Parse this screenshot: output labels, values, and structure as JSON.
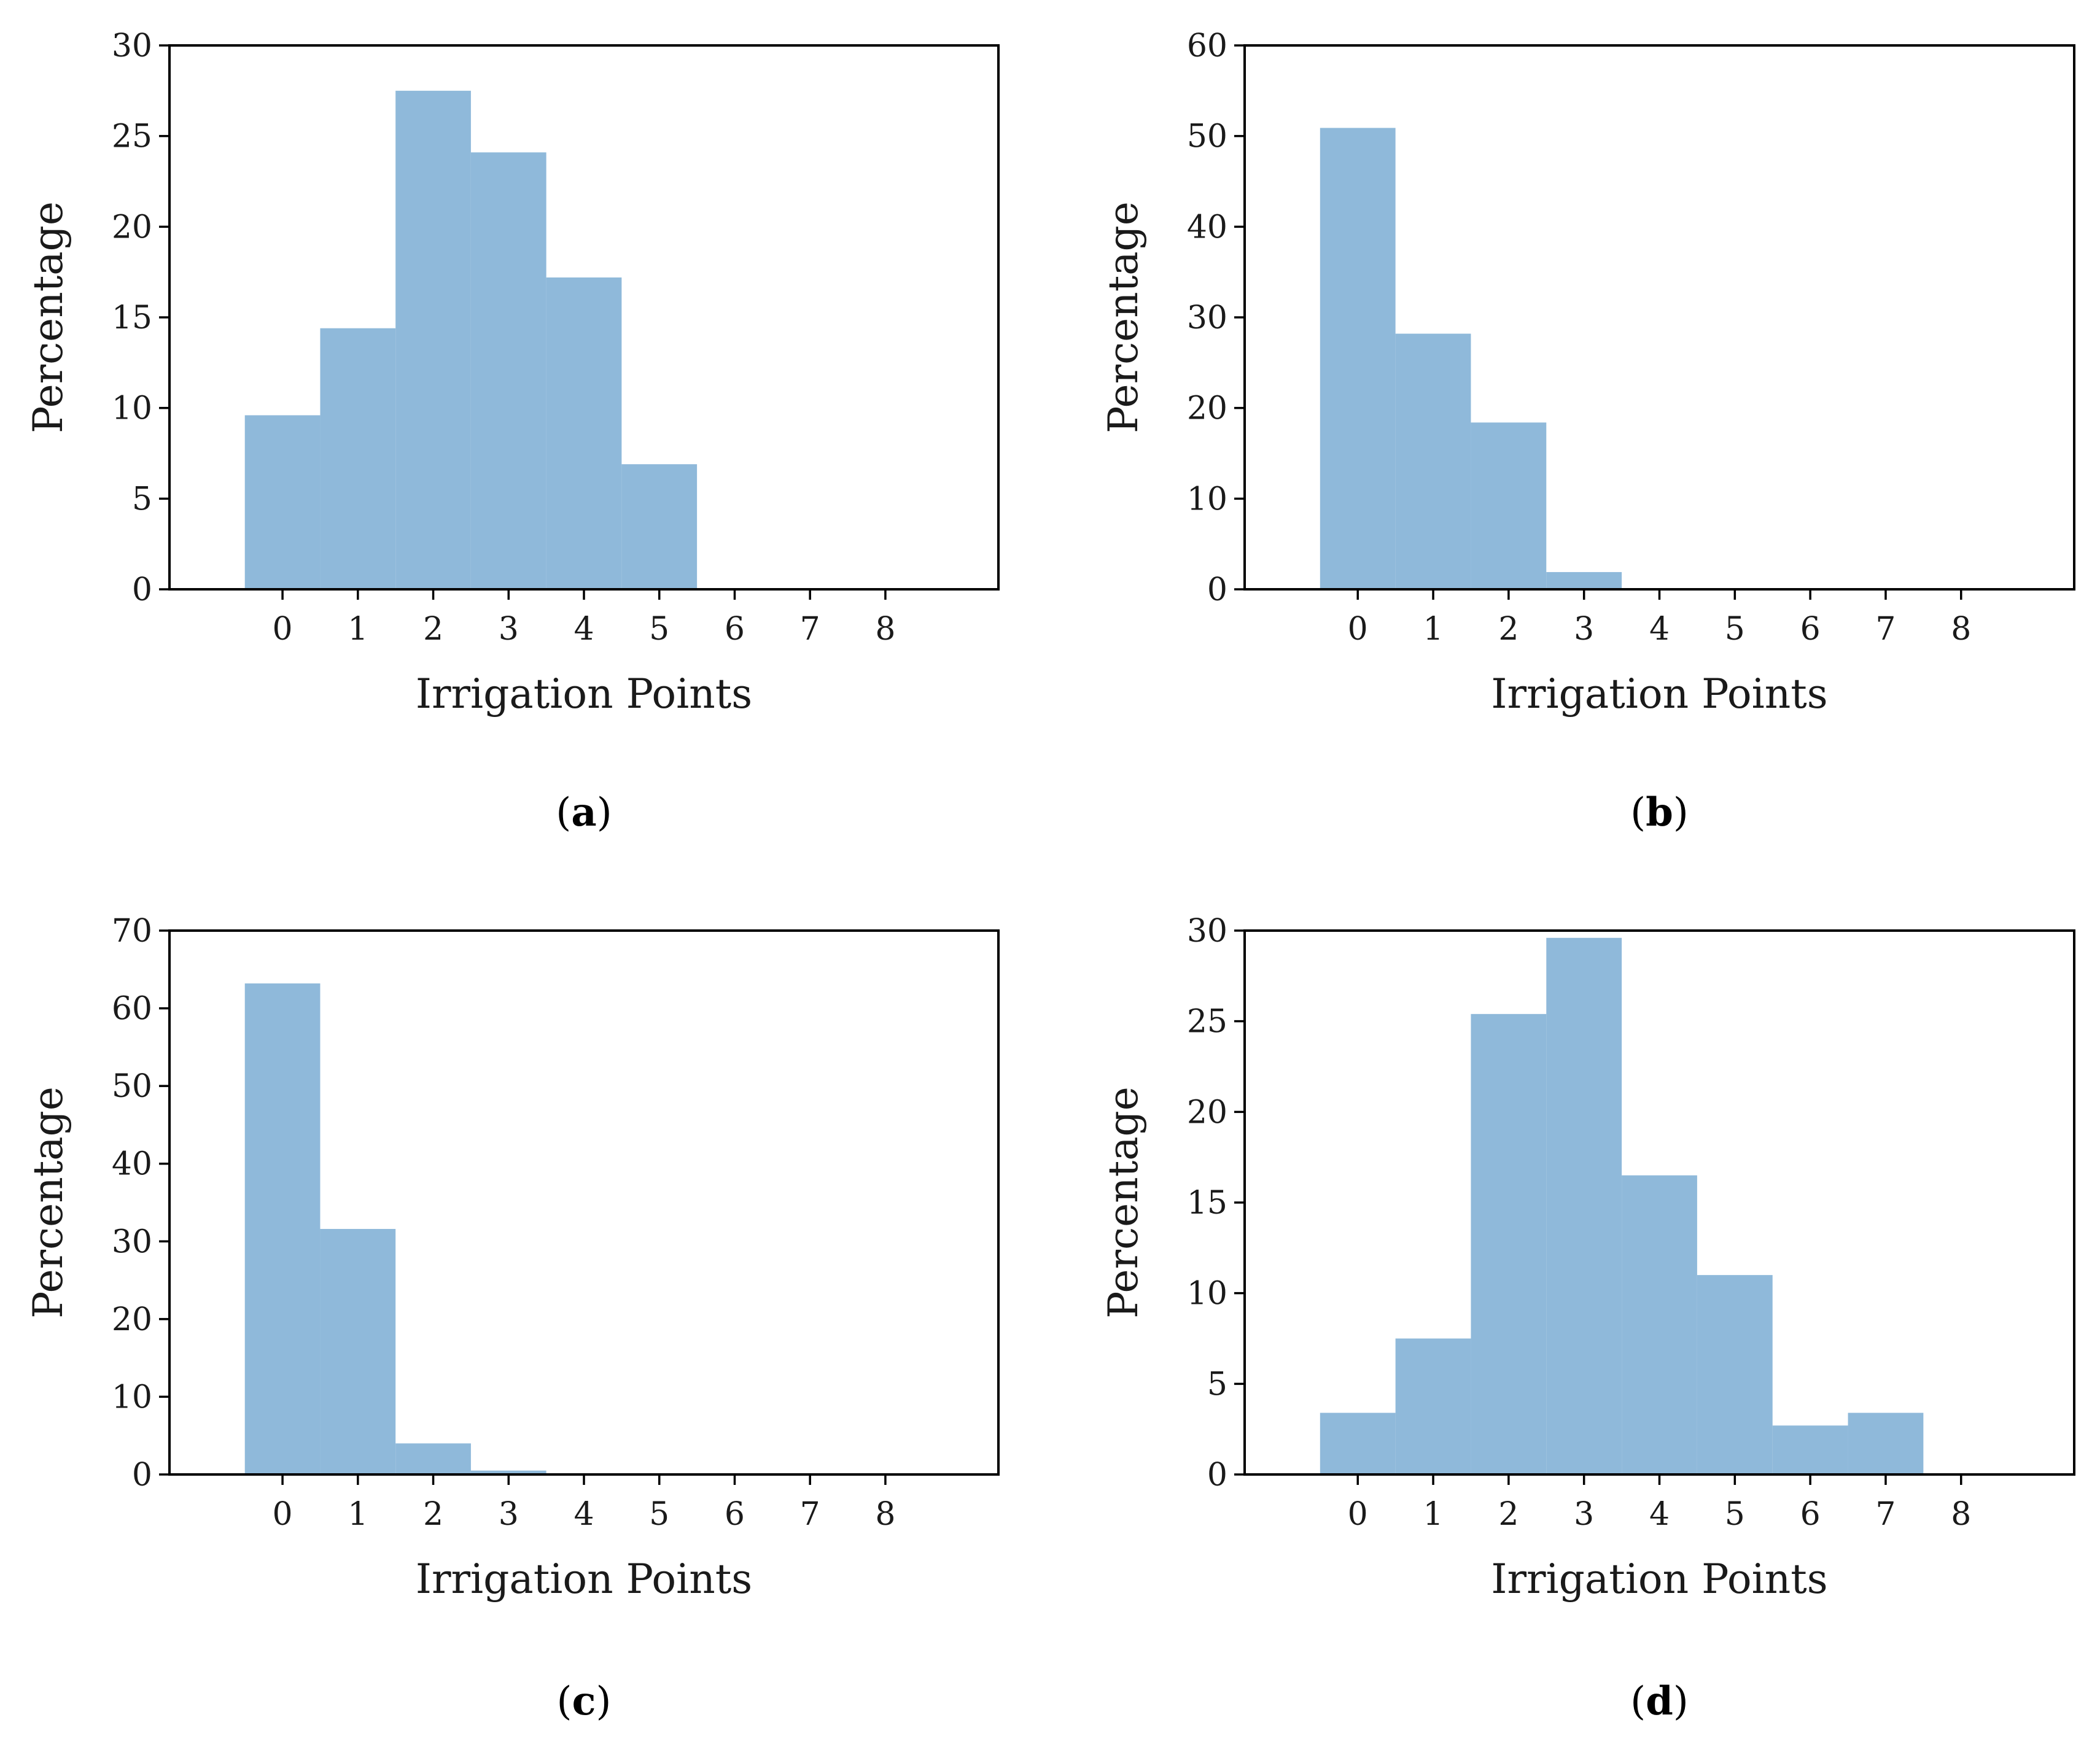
{
  "colors": {
    "bar": "#8fb9da",
    "axis": "#000000",
    "background": "#ffffff"
  },
  "chart_data": [
    {
      "type": "bar",
      "panel": "a",
      "xlabel": "Irrigation Points",
      "ylabel": "Percentage",
      "categories": [
        0,
        1,
        2,
        3,
        4,
        5,
        6,
        7,
        8
      ],
      "values": [
        9.6,
        14.4,
        27.5,
        24.1,
        17.2,
        6.9,
        0,
        0,
        0
      ],
      "ylim": [
        0,
        30
      ],
      "yticks": [
        0,
        5,
        10,
        15,
        20,
        25,
        30
      ],
      "xticks": [
        0,
        1,
        2,
        3,
        4,
        5,
        6,
        7,
        8
      ]
    },
    {
      "type": "bar",
      "panel": "b",
      "xlabel": "Irrigation Points",
      "ylabel": "Percentage",
      "categories": [
        0,
        1,
        2,
        3,
        4,
        5,
        6,
        7,
        8
      ],
      "values": [
        50.9,
        28.2,
        18.4,
        1.9,
        0,
        0,
        0,
        0,
        0
      ],
      "ylim": [
        0,
        60
      ],
      "yticks": [
        0,
        10,
        20,
        30,
        40,
        50,
        60
      ],
      "xticks": [
        0,
        1,
        2,
        3,
        4,
        5,
        6,
        7,
        8
      ]
    },
    {
      "type": "bar",
      "panel": "c",
      "xlabel": "Irrigation Points",
      "ylabel": "Percentage",
      "categories": [
        0,
        1,
        2,
        3,
        4,
        5,
        6,
        7,
        8
      ],
      "values": [
        63.2,
        31.6,
        4.0,
        0.5,
        0,
        0,
        0,
        0,
        0
      ],
      "ylim": [
        0,
        70
      ],
      "yticks": [
        0,
        10,
        20,
        30,
        40,
        50,
        60,
        70
      ],
      "xticks": [
        0,
        1,
        2,
        3,
        4,
        5,
        6,
        7,
        8
      ]
    },
    {
      "type": "bar",
      "panel": "d",
      "xlabel": "Irrigation Points",
      "ylabel": "Percentage",
      "categories": [
        0,
        1,
        2,
        3,
        4,
        5,
        6,
        7,
        8
      ],
      "values": [
        3.4,
        7.5,
        25.4,
        29.6,
        16.5,
        11.0,
        2.7,
        3.4,
        0
      ],
      "ylim": [
        0,
        30
      ],
      "yticks": [
        0,
        5,
        10,
        15,
        20,
        25,
        30
      ],
      "xticks": [
        0,
        1,
        2,
        3,
        4,
        5,
        6,
        7,
        8
      ]
    }
  ]
}
